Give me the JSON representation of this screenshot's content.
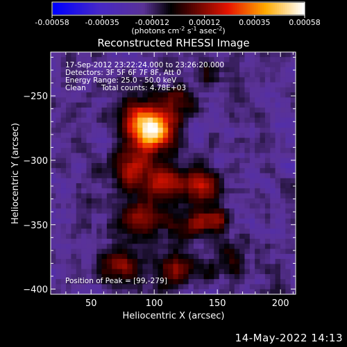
{
  "chart_data": {
    "type": "heatmap",
    "title": "Reconstructed RHESSI Image",
    "xlabel": "Heliocentric X (arcsec)",
    "ylabel": "Heliocentric Y (arcsec)",
    "xlim": [
      18,
      212
    ],
    "ylim": [
      -404,
      -216
    ],
    "xticks": [
      50,
      100,
      150,
      200
    ],
    "yticks": [
      -400,
      -350,
      -300,
      -250
    ],
    "colorbar": {
      "min": -0.00058,
      "max": 0.00058,
      "ticks": [
        "-0.00058",
        "-0.00035",
        "-0.00012",
        "0.00012",
        "0.00035",
        "0.00058"
      ],
      "unit_parts": [
        "(photons cm",
        "-2",
        " s",
        "-1",
        " asec",
        "-2",
        ")"
      ]
    },
    "annotations": {
      "time_range": "17-Sep-2012 23:22:24.000 to 23:26:20.000",
      "detectors": "Detectors: 3F 5F 6F 7F 8F, Att 0",
      "energy": "Energy Range: 25.0 - 50.0 keV",
      "clean_label": "Clean",
      "total_counts": "Total counts: 4.78E+03",
      "peak": "Position of Peak = [99,-279]"
    },
    "peak": [
      99,
      -279
    ],
    "emission_sources": [
      {
        "x": 99,
        "y": -279,
        "sx": 11,
        "sy": 10,
        "amp": 0.00058
      },
      {
        "x": 90,
        "y": -268,
        "sx": 14,
        "sy": 14,
        "amp": 0.0003
      },
      {
        "x": 118,
        "y": -252,
        "sx": 10,
        "sy": 9,
        "amp": 0.00022
      },
      {
        "x": 80,
        "y": -305,
        "sx": 12,
        "sy": 9,
        "amp": 0.0003
      },
      {
        "x": 110,
        "y": -318,
        "sx": 16,
        "sy": 8,
        "amp": 0.00035
      },
      {
        "x": 140,
        "y": -320,
        "sx": 10,
        "sy": 10,
        "amp": 0.00028
      },
      {
        "x": 90,
        "y": -345,
        "sx": 14,
        "sy": 10,
        "amp": 0.00028
      },
      {
        "x": 130,
        "y": -350,
        "sx": 12,
        "sy": 8,
        "amp": 0.00025
      },
      {
        "x": 150,
        "y": -345,
        "sx": 8,
        "sy": 7,
        "amp": 0.00022
      },
      {
        "x": 72,
        "y": -382,
        "sx": 12,
        "sy": 10,
        "amp": 0.00026
      },
      {
        "x": 118,
        "y": -384,
        "sx": 14,
        "sy": 9,
        "amp": 0.00026
      },
      {
        "x": 160,
        "y": -378,
        "sx": 10,
        "sy": 9,
        "amp": 0.00014
      },
      {
        "x": 140,
        "y": -232,
        "sx": 8,
        "sy": 8,
        "amp": 0.0001
      }
    ],
    "noise_amplitude": 0.00013,
    "background_level": -0.00016
  },
  "footer_timestamp": "14-May-2022 14:13"
}
